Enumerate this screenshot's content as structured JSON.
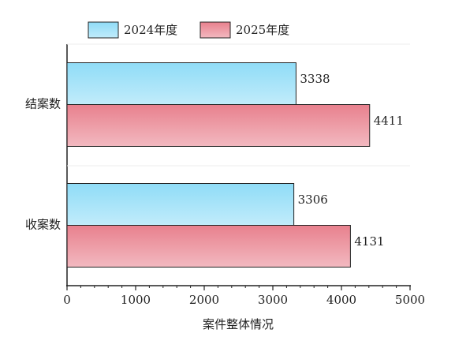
{
  "chart_data": {
    "type": "hbar",
    "categories": [
      "结案数",
      "收案数"
    ],
    "series": [
      {
        "name": "2024年度",
        "color": "#8fdcf7",
        "values": [
          3338,
          3306
        ]
      },
      {
        "name": "2025年度",
        "color": "#e8808d",
        "values": [
          4411,
          4131
        ]
      }
    ],
    "xlabel": "案件整体情况",
    "xlim": [
      0,
      5000
    ],
    "xticks": [
      0,
      1000,
      2000,
      3000,
      4000,
      5000
    ],
    "legend": "top"
  }
}
